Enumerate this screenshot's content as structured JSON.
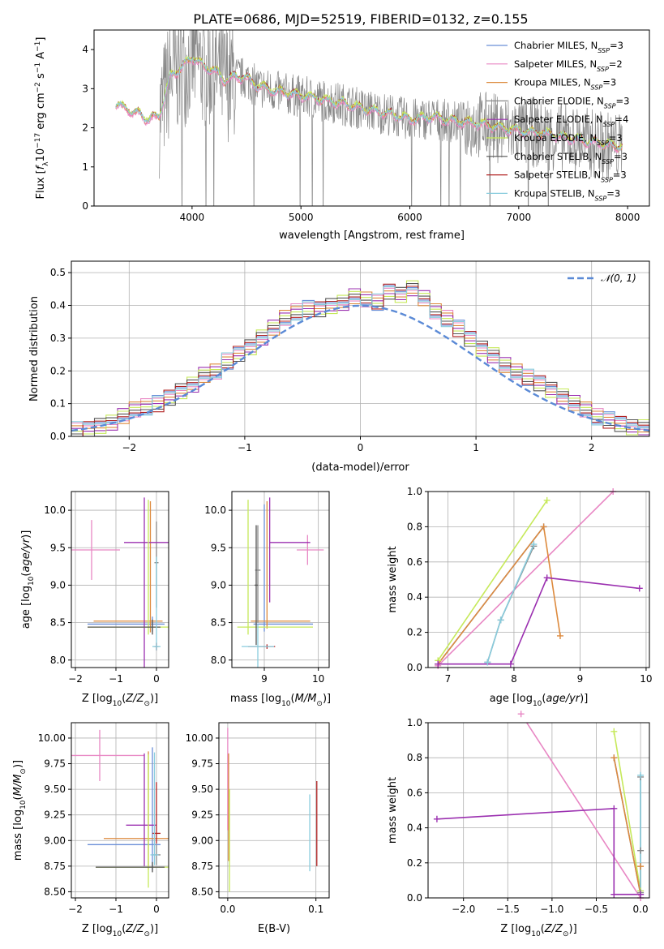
{
  "figure_title": "PLATE=0686, MJD=52519, FIBERID=0132, z=0.155",
  "colors": {
    "chabrier_miles": "#6a8fd8",
    "salpeter_miles": "#e887c4",
    "kroupa_miles": "#dd8a3d",
    "chabrier_elodie": "#888888",
    "salpeter_elodie": "#9b30b0",
    "kroupa_elodie": "#c6e95a",
    "chabrier_stelib": "#555555",
    "salpeter_stelib": "#b22222",
    "kroupa_stelib": "#88ccdd",
    "grid": "#b0b0b0",
    "gauss": "#5b8ad6"
  },
  "chart_data": [
    {
      "id": "spectrum",
      "type": "line",
      "xlabel": "wavelength [Angstrom, rest frame]",
      "ylabel": "Flux [f_λ 10^-17 erg cm^-2 s^-1 A^-1]",
      "xlim": [
        3100,
        8200
      ],
      "ylim": [
        0,
        4.5
      ],
      "xticks": [
        4000,
        5000,
        6000,
        7000,
        8000
      ],
      "yticks": [
        0,
        1,
        2,
        3,
        4
      ],
      "grid": false,
      "legend_position": "upper-right",
      "legend": [
        {
          "label": "Chabrier MILES",
          "sub": "SSP",
          "n": "3",
          "color_key": "chabrier_miles"
        },
        {
          "label": "Salpeter MILES",
          "sub": "SSP",
          "n": "2",
          "color_key": "salpeter_miles"
        },
        {
          "label": "Kroupa MILES",
          "sub": "SSP",
          "n": "3",
          "color_key": "kroupa_miles"
        },
        {
          "label": "Chabrier ELODIE",
          "sub": "SSP",
          "n": "3",
          "color_key": "chabrier_elodie"
        },
        {
          "label": "Salpeter ELODIE",
          "sub": "SSP",
          "n": "4",
          "color_key": "salpeter_elodie"
        },
        {
          "label": "Kroupa ELODIE",
          "sub": "SSP",
          "n": "3",
          "color_key": "kroupa_elodie"
        },
        {
          "label": "Chabrier STELIB",
          "sub": "SSP",
          "n": "3",
          "color_key": "chabrier_stelib"
        },
        {
          "label": "Salpeter STELIB",
          "sub": "SSP",
          "n": "3",
          "color_key": "salpeter_stelib"
        },
        {
          "label": "Kroupa STELIB",
          "sub": "SSP",
          "n": "3",
          "color_key": "kroupa_stelib"
        }
      ],
      "model_x": [
        3300,
        3400,
        3500,
        3600,
        3700,
        3800,
        3900,
        4000,
        4100,
        4200,
        4300,
        4400,
        4500,
        4600,
        4800,
        5000,
        5200,
        5400,
        5600,
        5800,
        6000,
        6200,
        6400,
        6600,
        6800,
        7000,
        7200,
        7400,
        7600,
        7800,
        7950
      ],
      "model_y": [
        2.6,
        2.45,
        2.35,
        2.2,
        2.3,
        3.3,
        3.5,
        3.8,
        3.55,
        3.45,
        3.2,
        3.3,
        3.25,
        3.05,
        2.9,
        2.8,
        2.7,
        2.6,
        2.45,
        2.35,
        2.2,
        2.25,
        2.15,
        2.1,
        2.0,
        1.9,
        1.85,
        1.75,
        1.65,
        1.55,
        1.5
      ]
    },
    {
      "id": "residuals",
      "type": "histogram",
      "xlabel": "(data-model)/error",
      "ylabel": "Normed distribution",
      "xlim": [
        -2.5,
        2.5
      ],
      "ylim": [
        0,
        0.535
      ],
      "xticks": [
        -2,
        -1,
        0,
        1,
        2
      ],
      "yticks": [
        0.0,
        0.1,
        0.2,
        0.3,
        0.4,
        0.5
      ],
      "grid": true,
      "legend_position": "upper-right",
      "gauss_label": "𝒩(0, 1)",
      "bin_width": 0.1,
      "bin_start": -2.5,
      "values": [
        0.02,
        0.02,
        0.03,
        0.04,
        0.06,
        0.08,
        0.09,
        0.1,
        0.12,
        0.14,
        0.16,
        0.19,
        0.2,
        0.23,
        0.25,
        0.27,
        0.3,
        0.33,
        0.36,
        0.38,
        0.39,
        0.39,
        0.4,
        0.41,
        0.43,
        0.42,
        0.41,
        0.44,
        0.43,
        0.45,
        0.42,
        0.38,
        0.36,
        0.33,
        0.3,
        0.27,
        0.25,
        0.22,
        0.2,
        0.18,
        0.16,
        0.14,
        0.12,
        0.1,
        0.08,
        0.06,
        0.05,
        0.04,
        0.03,
        0.03
      ],
      "gauss": {
        "mu": 0,
        "sigma": 1
      }
    },
    {
      "id": "age-vs-Z",
      "type": "errorbar",
      "xlabel": "Z [log10(Z/Z⊙)]",
      "ylabel": "age [log10(age/yr)]",
      "xlim": [
        -2.1,
        0.3
      ],
      "ylim": [
        7.9,
        10.25
      ],
      "xticks": [
        -2,
        -1,
        0
      ],
      "yticks": [
        8.0,
        8.5,
        9.0,
        9.5,
        10.0
      ],
      "grid": true,
      "points": [
        {
          "color_key": "chabrier_miles",
          "x": -0.1,
          "y": 8.48,
          "xerr": [
            1.6,
            0.3
          ],
          "yerr": [
            0.1,
            0.1
          ]
        },
        {
          "color_key": "salpeter_miles",
          "x": -1.6,
          "y": 9.47,
          "xerr": [
            1.6,
            0.7
          ],
          "yerr": [
            0.4,
            0.4
          ]
        },
        {
          "color_key": "kroupa_miles",
          "x": -0.15,
          "y": 8.52,
          "xerr": [
            1.4,
            0.3
          ],
          "yerr": [
            0.15,
            1.6
          ]
        },
        {
          "color_key": "chabrier_elodie",
          "x": 0.0,
          "y": 9.3,
          "xerr": [
            0.05,
            0.05
          ],
          "yerr": [
            0.6,
            0.55
          ]
        },
        {
          "color_key": "salpeter_elodie",
          "x": -0.3,
          "y": 9.57,
          "xerr": [
            0.5,
            0.7
          ],
          "yerr": [
            1.8,
            0.6
          ]
        },
        {
          "color_key": "kroupa_elodie",
          "x": -0.2,
          "y": 8.44,
          "xerr": [
            1.5,
            0.5
          ],
          "yerr": [
            0.1,
            1.7
          ]
        },
        {
          "color_key": "chabrier_stelib",
          "x": -0.1,
          "y": 8.44,
          "xerr": [
            1.6,
            0.2
          ],
          "yerr": [
            0.1,
            0.1
          ]
        },
        {
          "color_key": "salpeter_stelib",
          "x": 0.0,
          "y": 8.18,
          "xerr": [
            0.05,
            0.05
          ],
          "yerr": [
            0.05,
            0.05
          ]
        },
        {
          "color_key": "kroupa_stelib",
          "x": 0.0,
          "y": 8.18,
          "xerr": [
            0.1,
            0.1
          ],
          "yerr": [
            0.05,
            1.2
          ]
        }
      ]
    },
    {
      "id": "age-vs-mass",
      "type": "errorbar",
      "xlabel": "mass [log10(M/M⊙)]",
      "ylabel": "",
      "xlim": [
        8.4,
        10.2
      ],
      "ylim": [
        7.9,
        10.25
      ],
      "xticks": [
        9,
        10
      ],
      "yticks": [
        8.0,
        8.5,
        9.0,
        9.5,
        10.0
      ],
      "grid": true,
      "points": [
        {
          "color_key": "chabrier_miles",
          "x": 9.0,
          "y": 8.48,
          "xerr": [
            0.2,
            0.9
          ],
          "yerr": [
            0.1,
            1.6
          ]
        },
        {
          "color_key": "salpeter_miles",
          "x": 9.8,
          "y": 9.47,
          "xerr": [
            0.2,
            0.3
          ],
          "yerr": [
            0.2,
            0.2
          ]
        },
        {
          "color_key": "kroupa_miles",
          "x": 9.05,
          "y": 8.52,
          "xerr": [
            0.3,
            0.8
          ],
          "yerr": [
            0.1,
            1.6
          ]
        },
        {
          "color_key": "chabrier_elodie",
          "x": 8.88,
          "y": 9.2,
          "xerr": [
            0.05,
            0.05
          ],
          "yerr": [
            0.7,
            0.6
          ]
        },
        {
          "color_key": "salpeter_elodie",
          "x": 9.1,
          "y": 9.57,
          "xerr": [
            0.0,
            0.75
          ],
          "yerr": [
            0.8,
            0.6
          ]
        },
        {
          "color_key": "kroupa_elodie",
          "x": 8.7,
          "y": 8.44,
          "xerr": [
            0.2,
            1.2
          ],
          "yerr": [
            0.1,
            1.7
          ]
        },
        {
          "color_key": "chabrier_stelib",
          "x": 8.85,
          "y": 9.0,
          "xerr": [
            0.03,
            0.03
          ],
          "yerr": [
            0.8,
            0.8
          ]
        },
        {
          "color_key": "salpeter_stelib",
          "x": 9.05,
          "y": 8.18,
          "xerr": [
            0.35,
            0.15
          ],
          "yerr": [
            0.03,
            0.03
          ]
        },
        {
          "color_key": "kroupa_stelib",
          "x": 8.88,
          "y": 8.18,
          "xerr": [
            0.3,
            0.3
          ],
          "yerr": [
            0.3,
            0.3
          ]
        }
      ]
    },
    {
      "id": "weight-vs-age",
      "type": "line",
      "xlabel": "age [log10(age/yr)]",
      "ylabel": "mass weight",
      "xlim": [
        6.7,
        10.05
      ],
      "ylim": [
        0.0,
        1.0
      ],
      "xticks": [
        7,
        8,
        9,
        10
      ],
      "yticks": [
        0.0,
        0.2,
        0.4,
        0.6,
        0.8,
        1.0
      ],
      "grid": true,
      "series": [
        {
          "color_key": "salpeter_miles",
          "x": [
            6.85,
            9.5
          ],
          "y": [
            0.01,
            1.0
          ]
        },
        {
          "color_key": "kroupa_elodie",
          "x": [
            6.85,
            8.5
          ],
          "y": [
            0.04,
            0.95
          ]
        },
        {
          "color_key": "chabrier_miles",
          "x": [
            6.85,
            8.45
          ],
          "y": [
            0.02,
            0.8
          ]
        },
        {
          "color_key": "kroupa_miles",
          "x": [
            6.85,
            8.45,
            8.7
          ],
          "y": [
            0.02,
            0.8,
            0.18
          ]
        },
        {
          "color_key": "chabrier_elodie",
          "x": [
            7.6,
            7.8,
            8.3
          ],
          "y": [
            0.03,
            0.27,
            0.69
          ]
        },
        {
          "color_key": "kroupa_stelib",
          "x": [
            7.6,
            7.8,
            8.3
          ],
          "y": [
            0.03,
            0.27,
            0.7
          ]
        },
        {
          "color_key": "salpeter_elodie",
          "x": [
            6.85,
            7.95,
            8.5,
            9.9
          ],
          "y": [
            0.02,
            0.02,
            0.51,
            0.45
          ]
        }
      ]
    },
    {
      "id": "mass-vs-Z",
      "type": "errorbar",
      "xlabel": "Z [log10(Z/Z⊙)]",
      "ylabel": "mass [log10(M/M⊙)]",
      "xlim": [
        -2.1,
        0.3
      ],
      "ylim": [
        8.44,
        10.15
      ],
      "xticks": [
        -2,
        -1,
        0
      ],
      "yticks": [
        8.5,
        8.75,
        9.0,
        9.25,
        9.5,
        9.75,
        10.0
      ],
      "grid": true,
      "points": [
        {
          "color_key": "chabrier_miles",
          "x": -0.1,
          "y": 8.96,
          "xerr": [
            1.6,
            0.2
          ],
          "yerr": [
            0.25,
            0.95
          ]
        },
        {
          "color_key": "salpeter_miles",
          "x": -1.4,
          "y": 9.83,
          "xerr": [
            0.7,
            1.1
          ],
          "yerr": [
            0.25,
            0.25
          ]
        },
        {
          "color_key": "kroupa_miles",
          "x": -0.2,
          "y": 9.02,
          "xerr": [
            1.1,
            0.5
          ],
          "yerr": [
            0.3,
            0.85
          ]
        },
        {
          "color_key": "chabrier_elodie",
          "x": 0.0,
          "y": 8.86,
          "xerr": [
            0.1,
            0.1
          ],
          "yerr": [
            0.1,
            0.1
          ]
        },
        {
          "color_key": "salpeter_elodie",
          "x": -0.3,
          "y": 9.15,
          "xerr": [
            0.45,
            0.3
          ],
          "yerr": [
            0.4,
            0.7
          ]
        },
        {
          "color_key": "kroupa_elodie",
          "x": -0.2,
          "y": 8.74,
          "xerr": [
            1.3,
            0.5
          ],
          "yerr": [
            0.2,
            1.1
          ]
        },
        {
          "color_key": "chabrier_stelib",
          "x": -0.1,
          "y": 8.74,
          "xerr": [
            1.4,
            0.3
          ],
          "yerr": [
            0.05,
            0.05
          ]
        },
        {
          "color_key": "salpeter_stelib",
          "x": 0.0,
          "y": 9.07,
          "xerr": [
            0.1,
            0.1
          ],
          "yerr": [
            0.1,
            0.5
          ]
        },
        {
          "color_key": "kroupa_stelib",
          "x": -0.05,
          "y": 8.86,
          "xerr": [
            0.1,
            0.1
          ],
          "yerr": [
            0.1,
            1.0
          ]
        }
      ]
    },
    {
      "id": "mass-vs-ebv",
      "type": "errorbar",
      "xlabel": "E(B-V)",
      "ylabel": "",
      "xlim": [
        -0.01,
        0.115
      ],
      "ylim": [
        8.44,
        10.15
      ],
      "xticks": [
        0.0,
        0.1
      ],
      "yticks": [
        8.5,
        8.75,
        9.0,
        9.25,
        9.5,
        9.75,
        10.0
      ],
      "grid": true,
      "points": [
        {
          "color_key": "salpeter_miles",
          "x": 0.0,
          "y": 9.5,
          "xerr": [
            0,
            0
          ],
          "yerr": [
            0.4,
            0.6
          ]
        },
        {
          "color_key": "kroupa_miles",
          "x": 0.001,
          "y": 9.3,
          "xerr": [
            0,
            0
          ],
          "yerr": [
            0.5,
            0.55
          ]
        },
        {
          "color_key": "kroupa_elodie",
          "x": 0.002,
          "y": 9.0,
          "xerr": [
            0,
            0
          ],
          "yerr": [
            0.5,
            0.5
          ]
        },
        {
          "color_key": "kroupa_stelib",
          "x": 0.093,
          "y": 9.1,
          "xerr": [
            0,
            0
          ],
          "yerr": [
            0.4,
            0.35
          ]
        },
        {
          "color_key": "salpeter_stelib",
          "x": 0.101,
          "y": 9.1,
          "xerr": [
            0,
            0
          ],
          "yerr": [
            0.35,
            0.48
          ]
        }
      ]
    },
    {
      "id": "weight-vs-Z",
      "type": "line",
      "xlabel": "Z [log10(Z/Z⊙)]",
      "ylabel": "mass weight",
      "xlim": [
        -2.4,
        0.1
      ],
      "ylim": [
        0.0,
        1.0
      ],
      "xticks": [
        -2.0,
        -1.5,
        -1.0,
        -0.5,
        0.0
      ],
      "yticks": [
        0.0,
        0.2,
        0.4,
        0.6,
        0.8,
        1.0
      ],
      "grid": true,
      "series": [
        {
          "color_key": "salpeter_miles",
          "x": [
            -1.35,
            0.0
          ],
          "y": [
            1.05,
            0.0
          ]
        },
        {
          "color_key": "kroupa_elodie",
          "x": [
            -0.3,
            0.0
          ],
          "y": [
            0.95,
            0.04
          ]
        },
        {
          "color_key": "chabrier_miles",
          "x": [
            -0.3,
            0.0
          ],
          "y": [
            0.8,
            0.02
          ]
        },
        {
          "color_key": "kroupa_miles",
          "x": [
            -0.3,
            0.0,
            0.0
          ],
          "y": [
            0.8,
            0.02,
            0.18
          ]
        },
        {
          "color_key": "chabrier_elodie",
          "x": [
            0.0,
            0.0,
            0.0
          ],
          "y": [
            0.03,
            0.27,
            0.69
          ]
        },
        {
          "color_key": "kroupa_stelib",
          "x": [
            0.0,
            0.0
          ],
          "y": [
            0.02,
            0.7
          ]
        },
        {
          "color_key": "salpeter_elodie",
          "x": [
            -2.3,
            -0.3,
            -0.3,
            0.0
          ],
          "y": [
            0.45,
            0.51,
            0.02,
            0.02
          ]
        }
      ]
    }
  ]
}
